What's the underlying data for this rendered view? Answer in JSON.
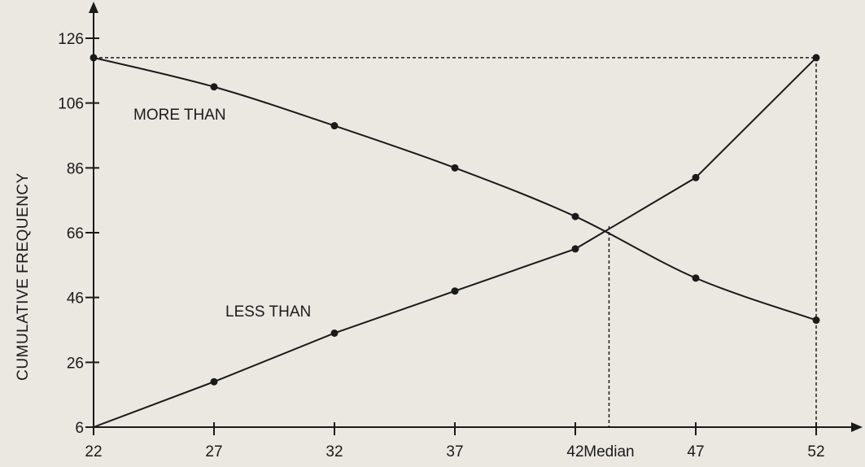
{
  "chart_data": {
    "type": "line",
    "x": [
      22,
      27,
      32,
      37,
      42,
      47,
      52
    ],
    "x_tick_labels": [
      "22",
      "27",
      "32",
      "37",
      "42",
      "47",
      "52"
    ],
    "y_ticks": [
      6,
      26,
      46,
      66,
      86,
      106,
      126
    ],
    "ylabel": "CUMULATIVE FREQUENCY",
    "xlabel": "",
    "xlim": [
      22,
      54.5
    ],
    "ylim": [
      6,
      130
    ],
    "series": [
      {
        "name": "MORE THAN",
        "values": [
          120,
          111,
          99,
          86,
          71,
          52,
          39
        ]
      },
      {
        "name": "LESS THAN",
        "values": [
          6,
          20,
          35,
          48,
          61,
          83,
          120
        ]
      }
    ],
    "annotations": {
      "more_than_label": "MORE THAN",
      "less_than_label": "LESS THAN",
      "median_label": "Median",
      "median_x": 43.4
    },
    "grid": false,
    "legend": "none",
    "colors": {
      "line": "#1a1a1a",
      "background": "#ebe8e2"
    }
  }
}
